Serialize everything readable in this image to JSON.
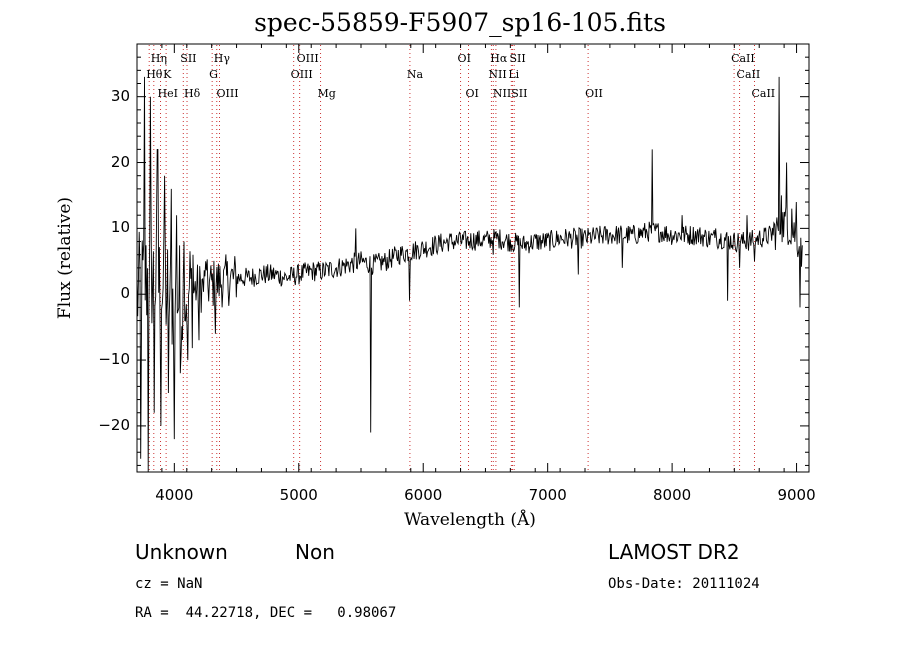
{
  "chart_data": {
    "type": "line",
    "title": "spec-55859-F5907_sp16-105.fits",
    "xlabel": "Wavelength (Å)",
    "ylabel": "Flux (relative)",
    "xlim": [
      3700,
      9100
    ],
    "ylim": [
      -27,
      38
    ],
    "x_ticks": [
      4000,
      5000,
      6000,
      7000,
      8000,
      9000
    ],
    "y_ticks": [
      -20,
      -10,
      0,
      10,
      20,
      30
    ],
    "x_tick_labels": [
      "4000",
      "5000",
      "6000",
      "7000",
      "8000",
      "9000"
    ],
    "y_tick_labels": [
      "−20",
      "−10",
      "0",
      "10",
      "20",
      "30"
    ],
    "line_color": "#000000",
    "marker_color": "#cc3333",
    "spectrum_anchor_points": [
      [
        3700,
        0
      ],
      [
        3800,
        3
      ],
      [
        3900,
        1
      ],
      [
        4000,
        -1
      ],
      [
        4100,
        0
      ],
      [
        4200,
        1
      ],
      [
        4300,
        1.5
      ],
      [
        4400,
        2
      ],
      [
        4500,
        2.5
      ],
      [
        4600,
        2.5
      ],
      [
        4700,
        3
      ],
      [
        4800,
        3
      ],
      [
        4900,
        2.5
      ],
      [
        5000,
        3
      ],
      [
        5100,
        3.5
      ],
      [
        5200,
        3.5
      ],
      [
        5300,
        4
      ],
      [
        5400,
        4.5
      ],
      [
        5500,
        5
      ],
      [
        5600,
        4.5
      ],
      [
        5700,
        5
      ],
      [
        5800,
        6
      ],
      [
        5900,
        6.5
      ],
      [
        6000,
        7
      ],
      [
        6100,
        7.5
      ],
      [
        6200,
        8
      ],
      [
        6300,
        8
      ],
      [
        6400,
        8.2
      ],
      [
        6500,
        8.2
      ],
      [
        6600,
        8.5
      ],
      [
        6700,
        8
      ],
      [
        6800,
        7.5
      ],
      [
        6900,
        8
      ],
      [
        7000,
        8
      ],
      [
        7100,
        8.5
      ],
      [
        7200,
        8.5
      ],
      [
        7300,
        8.5
      ],
      [
        7400,
        8.8
      ],
      [
        7500,
        9
      ],
      [
        7600,
        9
      ],
      [
        7700,
        9
      ],
      [
        7800,
        9.5
      ],
      [
        7900,
        9.5
      ],
      [
        8000,
        9
      ],
      [
        8100,
        9
      ],
      [
        8200,
        9
      ],
      [
        8300,
        8.5
      ],
      [
        8400,
        8.5
      ],
      [
        8500,
        8
      ],
      [
        8600,
        8
      ],
      [
        8700,
        8.5
      ],
      [
        8800,
        9
      ],
      [
        8900,
        11
      ],
      [
        9000,
        9
      ],
      [
        9050,
        5
      ]
    ],
    "spikes": [
      [
        3730,
        -25
      ],
      [
        3760,
        33
      ],
      [
        3790,
        -27
      ],
      [
        3810,
        30
      ],
      [
        3840,
        -18
      ],
      [
        3865,
        22
      ],
      [
        3890,
        -20
      ],
      [
        3920,
        18
      ],
      [
        3950,
        -15
      ],
      [
        3975,
        16
      ],
      [
        4000,
        -22
      ],
      [
        4020,
        12
      ],
      [
        4050,
        -12
      ],
      [
        4080,
        8
      ],
      [
        4110,
        -10
      ],
      [
        4150,
        6
      ],
      [
        4200,
        -7
      ],
      [
        4250,
        5
      ],
      [
        4330,
        -6
      ],
      [
        4400,
        4
      ],
      [
        5460,
        10
      ],
      [
        5577,
        -21
      ],
      [
        5890,
        -1
      ],
      [
        6300,
        9
      ],
      [
        6560,
        6
      ],
      [
        6770,
        -2
      ],
      [
        7245,
        3
      ],
      [
        7600,
        4
      ],
      [
        7840,
        22
      ],
      [
        8080,
        12
      ],
      [
        8350,
        10
      ],
      [
        8445,
        -1
      ],
      [
        8540,
        4
      ],
      [
        8600,
        12
      ],
      [
        8660,
        5
      ],
      [
        8860,
        33
      ],
      [
        8880,
        15
      ],
      [
        8920,
        20
      ],
      [
        8960,
        13
      ],
      [
        9000,
        14
      ],
      [
        9030,
        -2
      ]
    ],
    "lines": [
      {
        "label": "Hη",
        "x": 3835,
        "row": 1
      },
      {
        "label": "Hθ",
        "x": 3798,
        "row": 2
      },
      {
        "label": "K",
        "x": 3934,
        "row": 2
      },
      {
        "label": "HeI",
        "x": 3889,
        "row": 3
      },
      {
        "label": "SII",
        "x": 4072,
        "row": 1
      },
      {
        "label": "Hδ",
        "x": 4102,
        "row": 3
      },
      {
        "label": "Hγ",
        "x": 4341,
        "row": 1
      },
      {
        "label": "G",
        "x": 4304,
        "row": 2
      },
      {
        "label": "OIII",
        "x": 4363,
        "row": 3
      },
      {
        "label": "OIII",
        "x": 5007,
        "row": 1
      },
      {
        "label": "OIII",
        "x": 4959,
        "row": 2
      },
      {
        "label": "Mg",
        "x": 5175,
        "row": 3
      },
      {
        "label": "Na",
        "x": 5893,
        "row": 2
      },
      {
        "label": "OI",
        "x": 6300,
        "row": 1
      },
      {
        "label": "OI",
        "x": 6364,
        "row": 3
      },
      {
        "label": "Hα",
        "x": 6563,
        "row": 1
      },
      {
        "label": "SII",
        "x": 6717,
        "row": 1
      },
      {
        "label": "NII",
        "x": 6548,
        "row": 2
      },
      {
        "label": "Li",
        "x": 6708,
        "row": 2
      },
      {
        "label": "NII",
        "x": 6584,
        "row": 3
      },
      {
        "label": "SII",
        "x": 6731,
        "row": 3
      },
      {
        "label": "OII",
        "x": 7325,
        "row": 3
      },
      {
        "label": "CaII",
        "x": 8498,
        "row": 1
      },
      {
        "label": "CaII",
        "x": 8542,
        "row": 2
      },
      {
        "label": "CaII",
        "x": 8662,
        "row": 3
      }
    ]
  },
  "info": {
    "class": "Unknown",
    "subclass": "Non",
    "survey": "LAMOST DR2",
    "cz_text": "cz = NaN",
    "obs_date_text": "Obs-Date: 20111024",
    "radec_text": "RA =  44.22718, DEC =   0.98067"
  }
}
